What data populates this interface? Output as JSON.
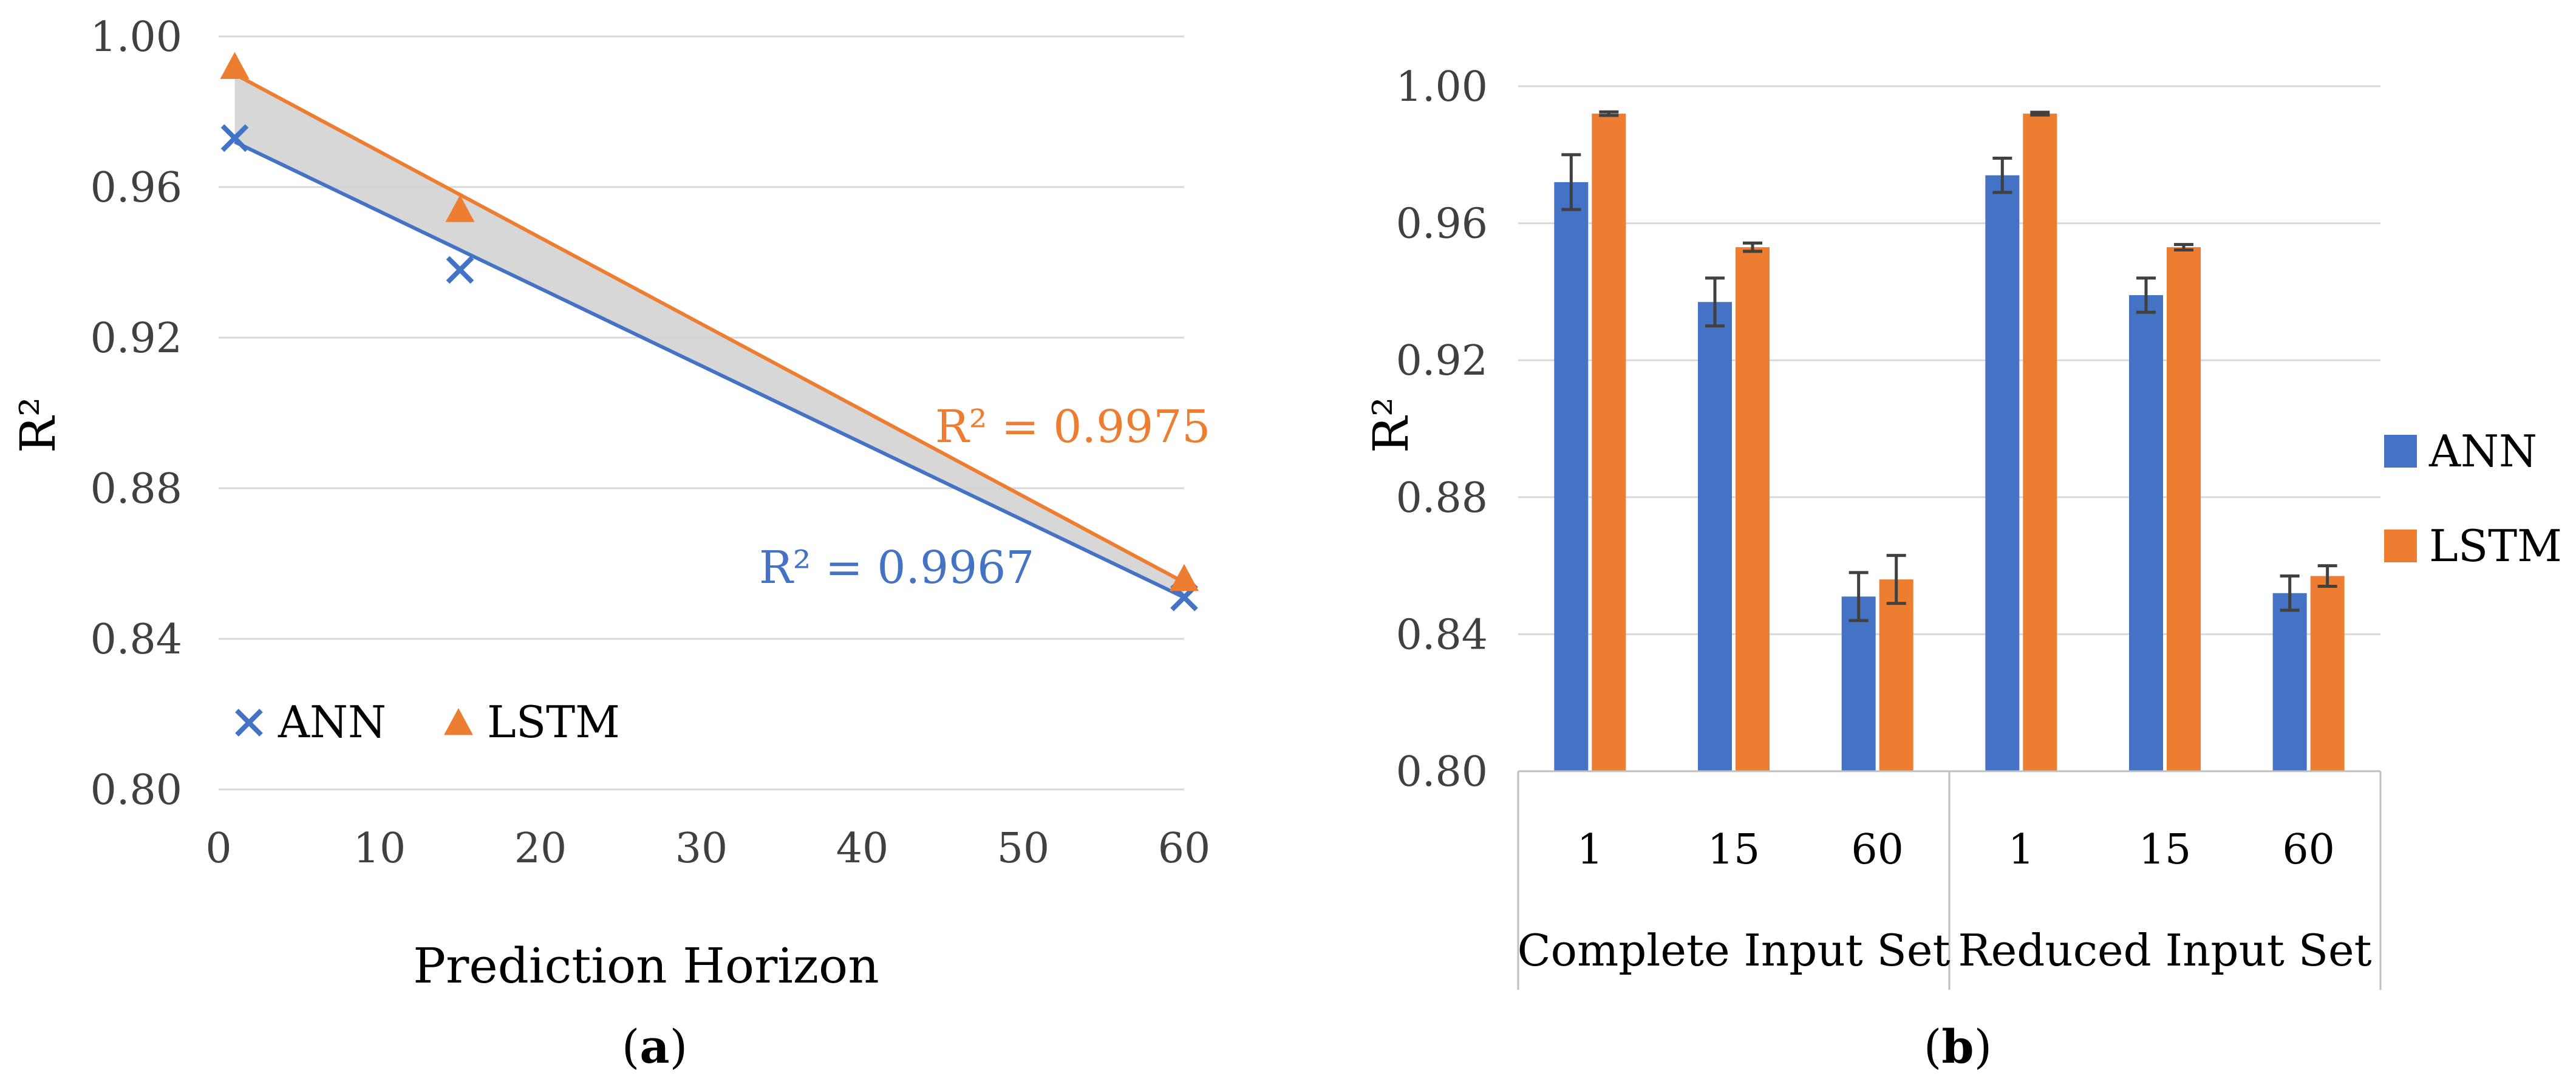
{
  "colors": {
    "ann": "#4472C4",
    "lstm": "#ED7D31",
    "grid": "#D9D9D9",
    "band": "#D0D0D0",
    "error": "#404040"
  },
  "chart_data": [
    {
      "type": "scatter",
      "panel": "(a)",
      "panel_letter": "a",
      "xlabel": "Prediction Horizon",
      "ylabel": "R²",
      "xlim": [
        0,
        60
      ],
      "ylim": [
        0.8,
        1.0
      ],
      "x_ticks": [
        "0",
        "10",
        "20",
        "30",
        "40",
        "50",
        "60"
      ],
      "y_ticks": [
        "0.80",
        "0.84",
        "0.88",
        "0.92",
        "0.96",
        "1.00"
      ],
      "legend_position": "bottom-left",
      "series": [
        {
          "name": "ANN",
          "marker": "x",
          "color_key": "ann",
          "points": [
            {
              "x": 1,
              "y": 0.973
            },
            {
              "x": 15,
              "y": 0.938
            },
            {
              "x": 60,
              "y": 0.851
            }
          ],
          "trendline": {
            "x": [
              1,
              60
            ],
            "y": [
              0.972,
              0.851
            ]
          },
          "trend_label": "R² = 0.9967"
        },
        {
          "name": "LSTM",
          "marker": "triangle",
          "color_key": "lstm",
          "points": [
            {
              "x": 1,
              "y": 0.992
            },
            {
              "x": 15,
              "y": 0.954
            },
            {
              "x": 60,
              "y": 0.856
            }
          ],
          "trendline": {
            "x": [
              1,
              60
            ],
            "y": [
              0.99,
              0.855
            ]
          },
          "trend_label": "R² = 0.9975"
        }
      ]
    },
    {
      "type": "bar",
      "panel": "(b)",
      "panel_letter": "b",
      "ylabel": "R²",
      "ylim": [
        0.8,
        1.0
      ],
      "y_ticks": [
        "0.80",
        "0.84",
        "0.88",
        "0.92",
        "0.96",
        "1.00"
      ],
      "categories": [
        "1",
        "15",
        "60",
        "1",
        "15",
        "60"
      ],
      "groups": [
        {
          "label": "Complete Input Set",
          "span": [
            0,
            3
          ]
        },
        {
          "label": "Reduced Input Set",
          "span": [
            3,
            6
          ]
        }
      ],
      "legend_position": "right",
      "series": [
        {
          "name": "ANN",
          "color_key": "ann",
          "values": [
            0.972,
            0.937,
            0.851,
            0.974,
            0.939,
            0.852
          ],
          "errors": [
            0.008,
            0.007,
            0.007,
            0.005,
            0.005,
            0.005
          ]
        },
        {
          "name": "LSTM",
          "color_key": "lstm",
          "values": [
            0.992,
            0.953,
            0.856,
            0.992,
            0.953,
            0.857
          ],
          "errors": [
            0.0005,
            0.0012,
            0.007,
            0.0004,
            0.0008,
            0.003
          ]
        }
      ]
    }
  ]
}
